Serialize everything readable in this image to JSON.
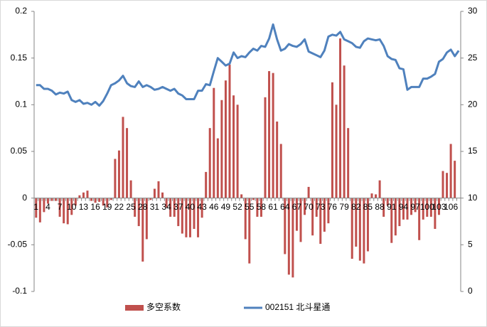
{
  "chart_data": {
    "type": "bar-line",
    "categories": [
      "1",
      null,
      null,
      "4",
      null,
      null,
      "7",
      null,
      null,
      "10",
      null,
      null,
      "13",
      null,
      null,
      "16",
      null,
      null,
      "19",
      null,
      null,
      "22",
      null,
      null,
      "25",
      null,
      null,
      "28",
      null,
      null,
      "31",
      null,
      null,
      "34",
      null,
      null,
      "37",
      null,
      null,
      "40",
      null,
      null,
      "43",
      null,
      null,
      "46",
      null,
      null,
      "49",
      null,
      null,
      "52",
      null,
      null,
      "55",
      null,
      null,
      "58",
      null,
      null,
      "61",
      null,
      null,
      "64",
      null,
      null,
      "67",
      null,
      null,
      "70",
      null,
      null,
      "73",
      null,
      null,
      "76",
      null,
      null,
      "79",
      null,
      null,
      "82",
      null,
      null,
      "85",
      null,
      null,
      "88",
      null,
      null,
      "91",
      null,
      null,
      "94",
      null,
      null,
      "97",
      null,
      null,
      "100",
      null,
      null,
      "103",
      null,
      null,
      "106",
      null,
      null
    ],
    "series": [
      {
        "name": "多空系数",
        "color": "#c0504d",
        "kind": "bar",
        "axis": "y",
        "values": [
          -0.021,
          -0.026,
          -0.015,
          -0.006,
          -0.003,
          -0.003,
          -0.02,
          -0.027,
          -0.028,
          -0.018,
          -0.008,
          0.003,
          0.006,
          0.008,
          -0.003,
          -0.005,
          -0.004,
          -0.008,
          -0.01,
          -0.002,
          0.042,
          0.051,
          0.087,
          0.075,
          0.019,
          -0.02,
          -0.03,
          -0.068,
          -0.044,
          -0.002,
          0.01,
          0.018,
          0.006,
          -0.01,
          -0.02,
          -0.02,
          -0.03,
          -0.038,
          -0.042,
          -0.042,
          -0.033,
          -0.042,
          -0.021,
          0.028,
          0.075,
          0.118,
          0.064,
          0.105,
          0.126,
          0.143,
          0.11,
          0.1,
          0.004,
          -0.044,
          -0.07,
          -0.002,
          -0.02,
          -0.02,
          0.108,
          0.136,
          0.134,
          0.082,
          0.058,
          -0.06,
          -0.082,
          -0.085,
          -0.035,
          -0.047,
          -0.018,
          0.012,
          -0.04,
          -0.02,
          -0.049,
          -0.036,
          -0.027,
          0.124,
          0.1,
          0.171,
          0.142,
          0.075,
          -0.065,
          -0.052,
          -0.067,
          -0.07,
          -0.057,
          0.005,
          0.004,
          0.019,
          -0.02,
          -0.008,
          -0.048,
          -0.04,
          -0.03,
          -0.023,
          -0.023,
          -0.018,
          -0.015,
          -0.045,
          -0.023,
          -0.02,
          -0.02,
          -0.033,
          -0.018,
          0.029,
          0.027,
          0.058,
          0.04,
          null
        ]
      },
      {
        "name": "002151 北斗星通",
        "color": "#4f81bd",
        "kind": "line",
        "axis": "y2",
        "values": [
          22.1,
          22.1,
          21.7,
          21.7,
          21.5,
          21.1,
          21.3,
          21.2,
          21.4,
          20.5,
          20.3,
          20.5,
          20.1,
          20.2,
          20.0,
          20.3,
          19.9,
          20.4,
          21.2,
          22.1,
          22.3,
          22.6,
          23.1,
          22.3,
          22.0,
          21.9,
          22.5,
          21.9,
          22.1,
          21.9,
          21.6,
          21.7,
          21.9,
          21.7,
          21.5,
          21.7,
          21.2,
          21.0,
          20.6,
          20.6,
          20.6,
          21.5,
          21.5,
          22.2,
          22.1,
          23.6,
          25.0,
          24.6,
          24.2,
          24.4,
          25.6,
          25.0,
          25.2,
          25.1,
          25.6,
          26.0,
          25.8,
          26.3,
          26.2,
          27.1,
          28.6,
          27.0,
          25.8,
          26.0,
          26.5,
          26.3,
          26.2,
          26.5,
          27.0,
          25.7,
          25.5,
          25.3,
          25.1,
          25.8,
          27.3,
          27.5,
          27.4,
          27.8,
          27.0,
          26.8,
          26.6,
          26.2,
          26.1,
          26.8,
          27.1,
          27.0,
          26.9,
          27.0,
          26.3,
          25.2,
          24.9,
          24.8,
          23.9,
          23.8,
          21.6,
          21.9,
          21.9,
          21.9,
          22.8,
          22.8,
          23.0,
          23.3,
          24.6,
          24.9,
          25.6,
          25.9,
          25.2,
          25.8
        ]
      }
    ],
    "ylim": [
      -0.1,
      0.2
    ],
    "yticks": [
      -0.1,
      -0.05,
      0,
      0.05,
      0.1,
      0.15,
      0.2
    ],
    "y2lim": [
      0,
      30
    ],
    "y2ticks": [
      0,
      5,
      10,
      15,
      20,
      25,
      30
    ],
    "legend": "bottom"
  }
}
